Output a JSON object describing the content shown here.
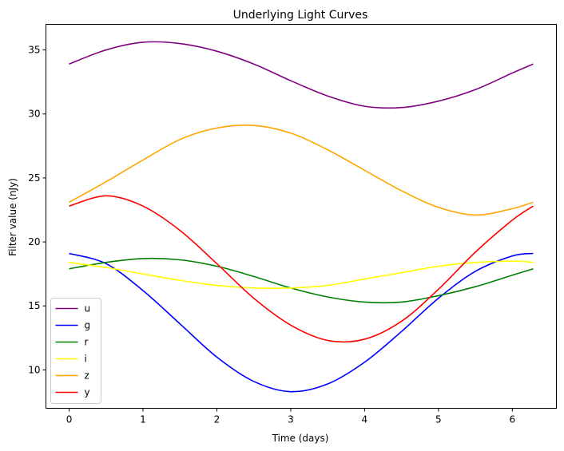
{
  "chart_data": {
    "type": "line",
    "title": "Underlying Light Curves",
    "xlabel": "Time (days)",
    "ylabel": "Filter value (nJy)",
    "xlim": [
      -0.314,
      6.597
    ],
    "ylim": [
      7.0,
      37.0
    ],
    "xticks": [
      0,
      1,
      2,
      3,
      4,
      5,
      6
    ],
    "yticks": [
      10,
      15,
      20,
      25,
      30,
      35
    ],
    "grid": false,
    "legend_placement": "lower-left",
    "x": [
      0,
      0.5,
      1.0,
      1.5,
      2.0,
      2.5,
      3.0,
      3.5,
      4.0,
      4.5,
      5.0,
      5.5,
      6.0,
      6.283
    ],
    "series": [
      {
        "name": "u",
        "color": "#800080",
        "values": [
          33.9,
          35.0,
          35.6,
          35.5,
          34.9,
          33.9,
          32.6,
          31.4,
          30.6,
          30.5,
          31.0,
          31.9,
          33.2,
          33.9
        ]
      },
      {
        "name": "g",
        "color": "#0000ff",
        "values": [
          19.1,
          18.3,
          16.2,
          13.6,
          11.0,
          9.1,
          8.3,
          8.9,
          10.6,
          13.0,
          15.6,
          17.7,
          18.9,
          19.1
        ]
      },
      {
        "name": "r",
        "color": "#008000",
        "values": [
          17.9,
          18.4,
          18.7,
          18.6,
          18.1,
          17.3,
          16.4,
          15.7,
          15.3,
          15.3,
          15.8,
          16.5,
          17.4,
          17.9
        ]
      },
      {
        "name": "i",
        "color": "#ffff00",
        "values": [
          18.4,
          18.0,
          17.5,
          17.0,
          16.6,
          16.4,
          16.4,
          16.6,
          17.1,
          17.6,
          18.1,
          18.4,
          18.5,
          18.4
        ]
      },
      {
        "name": "z",
        "color": "#ffa500",
        "values": [
          23.1,
          24.7,
          26.4,
          28.0,
          28.9,
          29.1,
          28.5,
          27.2,
          25.6,
          24.0,
          22.7,
          22.1,
          22.6,
          23.1
        ]
      },
      {
        "name": "y",
        "color": "#ff0000",
        "values": [
          22.8,
          23.6,
          22.8,
          20.9,
          18.3,
          15.6,
          13.5,
          12.3,
          12.4,
          13.8,
          16.3,
          19.2,
          21.7,
          22.8
        ]
      }
    ]
  }
}
